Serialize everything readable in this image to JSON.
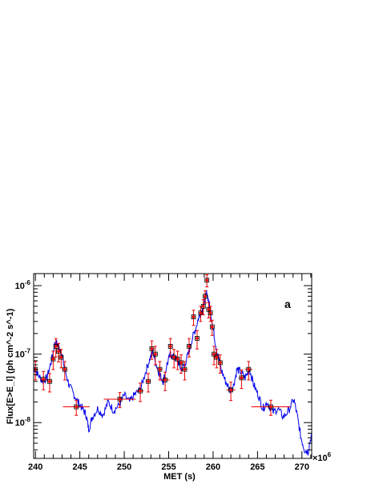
{
  "chart_data": {
    "type": "line",
    "panel_label": "a",
    "xlabel": "MET (s)",
    "ylabel": "Flux[E>E_l] (ph cm^-2 s^-1)",
    "x_exponent_label": "×10",
    "x_exponent_value": "6",
    "xlim": [
      239.8,
      271.1
    ],
    "ylim": [
      3e-09,
      1.5e-06
    ],
    "y_scale": "log",
    "x_ticks": [
      240,
      245,
      250,
      255,
      260,
      265,
      270
    ],
    "x_tick_labels": [
      "240",
      "245",
      "250",
      "255",
      "260",
      "265",
      "270"
    ],
    "y_ticks": [
      1e-08,
      1e-07,
      1e-06
    ],
    "y_tick_labels": [
      {
        "base": "10",
        "exp": "-8"
      },
      {
        "base": "10",
        "exp": "-7"
      },
      {
        "base": "10",
        "exp": "-6"
      }
    ],
    "grid": false,
    "colors": {
      "continuous": "#0000ee",
      "binned": "#ee0000",
      "markers": "#000000"
    },
    "series": [
      {
        "style": "continuous-line",
        "x": [
          239.8,
          240.3,
          240.8,
          241.3,
          241.8,
          242.2,
          242.5,
          242.9,
          243.3,
          243.8,
          244.3,
          244.8,
          245.3,
          245.7,
          246.0,
          246.4,
          247.0,
          247.6,
          248.2,
          248.8,
          249.4,
          250.0,
          250.6,
          251.2,
          251.8,
          252.3,
          252.8,
          253.2,
          253.6,
          254.0,
          254.4,
          254.8,
          255.2,
          255.6,
          256.0,
          256.4,
          256.8,
          257.2,
          257.6,
          258.0,
          258.4,
          258.8,
          259.1,
          259.3,
          259.6,
          259.9,
          260.2,
          260.5,
          260.9,
          261.4,
          261.9,
          262.3,
          262.7,
          263.1,
          263.6,
          264.1,
          264.6,
          265.1,
          265.6,
          266.1,
          266.7,
          267.3,
          267.9,
          268.5,
          269.1,
          269.5,
          269.9,
          270.3,
          270.7,
          271.1
        ],
        "y": [
          6.5e-08,
          5e-08,
          4e-08,
          4.5e-08,
          8e-08,
          1.5e-07,
          1.4e-07,
          1.1e-07,
          6e-08,
          3.5e-08,
          2.6e-08,
          2e-08,
          1.6e-08,
          1.3e-08,
          8e-09,
          1.2e-08,
          1.6e-08,
          1.3e-08,
          2e-08,
          1.5e-08,
          1.8e-08,
          2.5e-08,
          2e-08,
          2.6e-08,
          3e-08,
          5e-08,
          8e-08,
          1.1e-07,
          7e-08,
          5e-08,
          4e-08,
          7e-08,
          1e-07,
          9e-08,
          8e-08,
          6e-08,
          7e-08,
          1e-07,
          1.6e-07,
          2.3e-07,
          3.5e-07,
          4.5e-07,
          6e-07,
          8e-07,
          5e-07,
          3e-07,
          1.6e-07,
          1e-07,
          6e-08,
          4e-08,
          3e-08,
          3.5e-08,
          6e-08,
          5.5e-08,
          4.5e-08,
          6e-08,
          3.5e-08,
          2.5e-08,
          1.6e-08,
          2e-08,
          1.4e-08,
          1.6e-08,
          1.2e-08,
          1.5e-08,
          2.2e-08,
          1.2e-08,
          6e-09,
          4e-09,
          3.8e-09,
          7e-09
        ]
      },
      {
        "style": "binned-points",
        "x": [
          240.0,
          240.9,
          241.6,
          242.0,
          242.3,
          242.6,
          242.9,
          243.3,
          244.6,
          249.5,
          251.8,
          252.7,
          253.1,
          253.5,
          254.0,
          254.6,
          255.2,
          255.6,
          256.0,
          256.4,
          256.8,
          257.3,
          257.8,
          258.2,
          258.6,
          258.9,
          259.1,
          259.3,
          259.5,
          259.7,
          259.9,
          260.1,
          260.4,
          260.8,
          262.0,
          263.2,
          264.0,
          266.5
        ],
        "xerr": [
          0.3,
          0.4,
          0.3,
          0.2,
          0.2,
          0.2,
          0.2,
          0.3,
          1.5,
          1.8,
          0.4,
          0.3,
          0.2,
          0.2,
          0.3,
          0.5,
          0.2,
          0.2,
          0.2,
          0.2,
          0.3,
          0.2,
          0.2,
          0.2,
          0.2,
          0.1,
          0.1,
          0.1,
          0.1,
          0.1,
          0.1,
          0.2,
          0.2,
          0.2,
          0.5,
          0.3,
          0.4,
          2.2
        ],
        "y": [
          6e-08,
          4.3e-08,
          4e-08,
          8.5e-08,
          1.3e-07,
          1.1e-07,
          9e-08,
          6e-08,
          1.7e-08,
          2.2e-08,
          2.9e-08,
          4e-08,
          1.2e-07,
          1e-07,
          6e-08,
          4.2e-08,
          1.3e-07,
          9e-08,
          8.5e-08,
          7.5e-08,
          6e-08,
          1.3e-07,
          3.5e-07,
          1.7e-07,
          4e-07,
          5e-07,
          7e-07,
          1.2e-06,
          4.5e-07,
          4e-07,
          2.5e-07,
          1e-07,
          9e-08,
          7.5e-08,
          3e-08,
          4.5e-08,
          6e-08,
          1.7e-08
        ],
        "yerr_frac": [
          0.3,
          0.3,
          0.3,
          0.3,
          0.3,
          0.3,
          0.3,
          0.3,
          0.25,
          0.25,
          0.3,
          0.3,
          0.3,
          0.3,
          0.3,
          0.3,
          0.3,
          0.3,
          0.3,
          0.3,
          0.3,
          0.3,
          0.25,
          0.3,
          0.25,
          0.25,
          0.2,
          0.2,
          0.25,
          0.25,
          0.25,
          0.3,
          0.3,
          0.3,
          0.3,
          0.3,
          0.3,
          0.25
        ]
      }
    ]
  }
}
